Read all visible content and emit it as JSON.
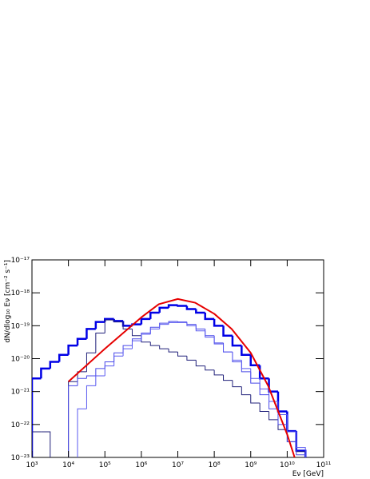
{
  "chart_data": {
    "type": "histogram",
    "xlabel": "Eν [GeV]",
    "ylabel": "dN/dlog₁₀ Eν [cm⁻² s⁻¹]",
    "xlog": true,
    "ylog": true,
    "xlim": [
      1000.0,
      100000000000.0
    ],
    "ylim": [
      1e-23,
      1e-17
    ],
    "xticks": [
      {
        "value": 1000.0,
        "label": "10³"
      },
      {
        "value": 10000.0,
        "label": "10⁴"
      },
      {
        "value": 100000.0,
        "label": "10⁵"
      },
      {
        "value": 1000000.0,
        "label": "10⁶"
      },
      {
        "value": 10000000.0,
        "label": "10⁷"
      },
      {
        "value": 100000000.0,
        "label": "10⁸"
      },
      {
        "value": 1000000000.0,
        "label": "10⁹"
      },
      {
        "value": 10000000000.0,
        "label": "10¹⁰"
      },
      {
        "value": 100000000000.0,
        "label": "10¹¹"
      }
    ],
    "yticks": [
      {
        "value": 1e-23,
        "label": "10⁻²³"
      },
      {
        "value": 1e-22,
        "label": "10⁻²²"
      },
      {
        "value": 1e-21,
        "label": "10⁻²¹"
      },
      {
        "value": 1e-20,
        "label": "10⁻²⁰"
      },
      {
        "value": 1e-19,
        "label": "10⁻¹⁹"
      },
      {
        "value": 1e-18,
        "label": "10⁻¹⁸"
      },
      {
        "value": 1e-17,
        "label": "10⁻¹⁷"
      }
    ],
    "bins": [
      1000.0,
      1778.0,
      3162.0,
      5623.0,
      10000.0,
      17780.0,
      31620.0,
      56230.0,
      100000.0,
      177800.0,
      316200.0,
      562300.0,
      1000000.0,
      1778000.0,
      3162000.0,
      5623000.0,
      10000000.0,
      17780000.0,
      31620000.0,
      56230000.0,
      100000000.0,
      177800000.0,
      316200000.0,
      562300000.0,
      1000000000.0,
      1778000000.0,
      3162000000.0,
      5623000000.0,
      10000000000.0,
      17780000000.0,
      31620000000.0,
      56230000000.0,
      100000000000.0
    ],
    "series": [
      {
        "color": "#0000e6",
        "line_width": 2.5,
        "values": [
          2.5e-21,
          5e-21,
          8e-21,
          1.3e-20,
          2.5e-20,
          4e-20,
          8e-20,
          1.3e-19,
          1.6e-19,
          1.4e-19,
          1e-19,
          1.1e-19,
          1.6e-19,
          2.5e-19,
          3.5e-19,
          4.2e-19,
          4e-19,
          3.2e-19,
          2.5e-19,
          1.6e-19,
          1e-19,
          5e-20,
          2.5e-20,
          1.3e-20,
          6.3e-21,
          2.5e-21,
          1e-21,
          2.5e-22,
          6.3e-23,
          1.6e-23,
          null,
          null
        ]
      },
      {
        "color": "#20207a",
        "line_width": 1,
        "values": [
          6e-23,
          6e-23,
          null,
          null,
          2e-21,
          4e-21,
          1.5e-20,
          6e-20,
          1.5e-19,
          1.3e-19,
          8e-20,
          5e-20,
          3.2e-20,
          2.5e-20,
          2e-20,
          1.6e-20,
          1.2e-20,
          9e-21,
          6e-21,
          4.5e-21,
          3.2e-21,
          2.2e-21,
          1.4e-21,
          8e-22,
          4.5e-22,
          2.5e-22,
          1.4e-22,
          7e-23,
          3e-23,
          1.5e-23,
          null,
          null
        ]
      },
      {
        "color": "#4848e8",
        "line_width": 1,
        "values": [
          null,
          null,
          null,
          null,
          1.5e-21,
          2.5e-21,
          3e-21,
          5e-21,
          8e-21,
          1.5e-20,
          2.5e-20,
          4e-20,
          6e-20,
          9e-20,
          1.2e-19,
          1.35e-19,
          1.3e-19,
          1.1e-19,
          8e-20,
          5e-20,
          3e-20,
          1.6e-20,
          8e-21,
          4e-21,
          1.8e-21,
          8e-22,
          3e-22,
          1e-22,
          3e-23,
          1.2e-23,
          null,
          null
        ]
      },
      {
        "color": "#5a5af0",
        "line_width": 1,
        "values": [
          null,
          null,
          null,
          null,
          null,
          3e-22,
          1.5e-21,
          3e-21,
          6e-21,
          1.2e-20,
          2e-20,
          3.5e-20,
          5.5e-20,
          8e-20,
          1.1e-19,
          1.25e-19,
          1.25e-19,
          1e-19,
          7e-20,
          4.5e-20,
          2.8e-20,
          1.6e-20,
          9e-21,
          5e-21,
          2.5e-21,
          1.2e-21,
          5e-22,
          2e-22,
          6e-23,
          2e-23,
          null,
          null
        ]
      }
    ],
    "curve": {
      "color": "#e60000",
      "line_width": 2,
      "x": [
        10000.0,
        100000.0,
        1000000.0,
        3000000.0,
        10000000.0,
        30000000.0,
        100000000.0,
        300000000.0,
        1000000000.0,
        3000000000.0,
        10000000000.0,
        16000000000.0
      ],
      "values": [
        2e-21,
        2e-20,
        1.8e-19,
        4.5e-19,
        6.5e-19,
        5e-19,
        2.3e-19,
        8e-20,
        1.5e-20,
        1.5e-21,
        5e-23,
        1e-23
      ]
    }
  }
}
